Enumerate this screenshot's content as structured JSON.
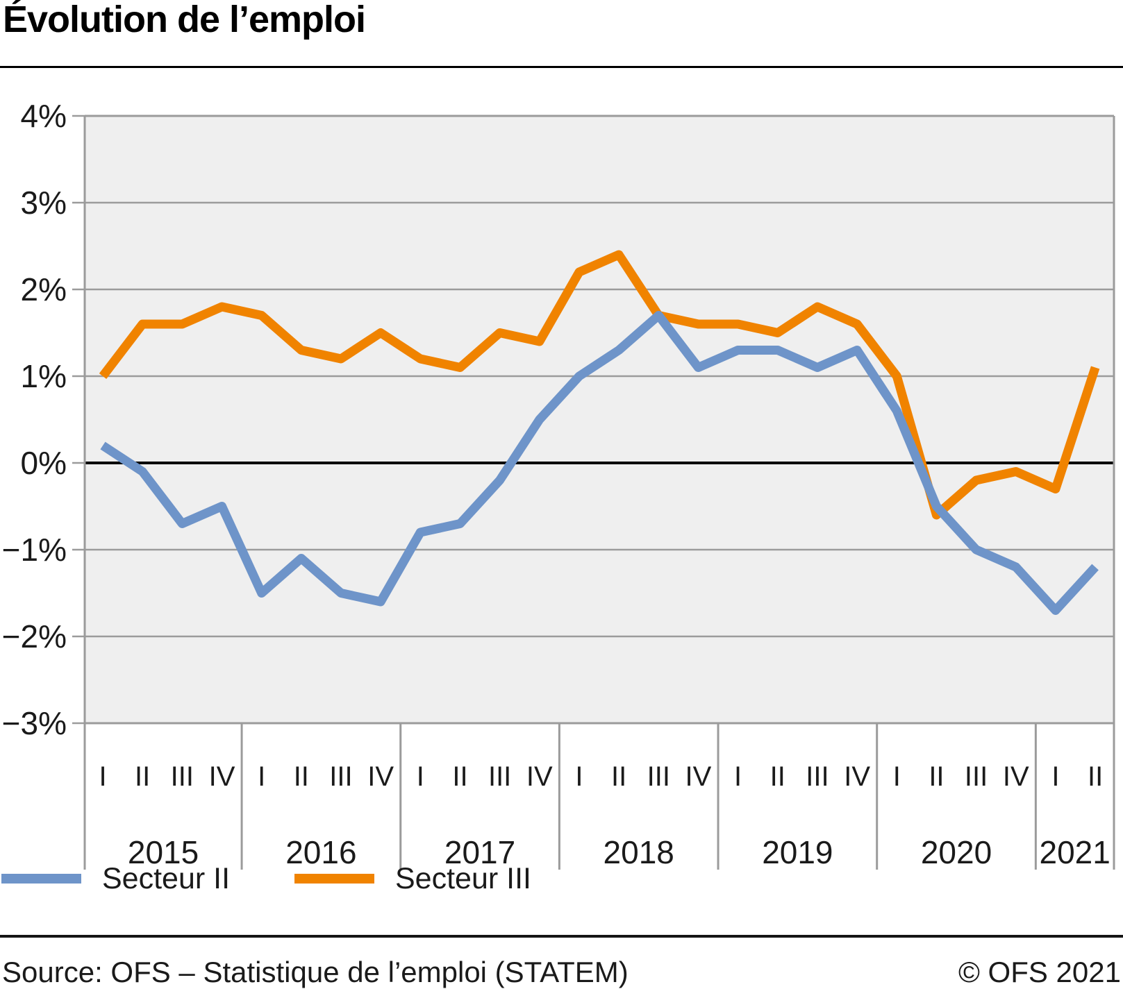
{
  "title": "Évolution de l’emploi",
  "legend": {
    "items": [
      {
        "label": "Secteur II",
        "color": "#6E94C9"
      },
      {
        "label": "Secteur III",
        "color": "#F08300"
      }
    ]
  },
  "footer": {
    "source": "Source: OFS – Statistique de l’emploi (STATEM)",
    "copyright": "© OFS 2021"
  },
  "chart_data": {
    "type": "line",
    "title": "Évolution de l’emploi",
    "y_unit": "%",
    "ylim": [
      -3,
      4
    ],
    "y_ticks": [
      "4%",
      "3%",
      "2%",
      "1%",
      "0%",
      "−1%",
      "−2%",
      "−3%"
    ],
    "grid": "horizontal",
    "zero_line": true,
    "legend_position": "bottom-left",
    "colors": {
      "plot_background": "#EFEFEF",
      "gridline": "#9B9B9B",
      "zero_line": "#000000",
      "secteur_2": "#6E94C9",
      "secteur_3": "#F08300"
    },
    "years": [
      {
        "label": "2015",
        "quarters": [
          "I",
          "II",
          "III",
          "IV"
        ]
      },
      {
        "label": "2016",
        "quarters": [
          "I",
          "II",
          "III",
          "IV"
        ]
      },
      {
        "label": "2017",
        "quarters": [
          "I",
          "II",
          "III",
          "IV"
        ]
      },
      {
        "label": "2018",
        "quarters": [
          "I",
          "II",
          "III",
          "IV"
        ]
      },
      {
        "label": "2019",
        "quarters": [
          "I",
          "II",
          "III",
          "IV"
        ]
      },
      {
        "label": "2020",
        "quarters": [
          "I",
          "II",
          "III",
          "IV"
        ]
      },
      {
        "label": "2021",
        "quarters": [
          "I",
          "II"
        ]
      }
    ],
    "series": [
      {
        "name": "Secteur II",
        "color": "#6E94C9",
        "values": [
          0.2,
          -0.1,
          -0.7,
          -0.5,
          -1.5,
          -1.1,
          -1.5,
          -1.6,
          -0.8,
          -0.7,
          -0.2,
          0.5,
          1.0,
          1.3,
          1.7,
          1.1,
          1.3,
          1.3,
          1.1,
          1.3,
          0.6,
          -0.5,
          -1.0,
          -1.2,
          -1.7,
          -1.2
        ]
      },
      {
        "name": "Secteur III",
        "color": "#F08300",
        "values": [
          1.0,
          1.6,
          1.6,
          1.8,
          1.7,
          1.3,
          1.2,
          1.5,
          1.2,
          1.1,
          1.5,
          1.4,
          2.2,
          2.4,
          1.7,
          1.6,
          1.6,
          1.5,
          1.8,
          1.6,
          1.0,
          -0.6,
          -0.2,
          -0.1,
          -0.3,
          1.1
        ]
      }
    ]
  }
}
